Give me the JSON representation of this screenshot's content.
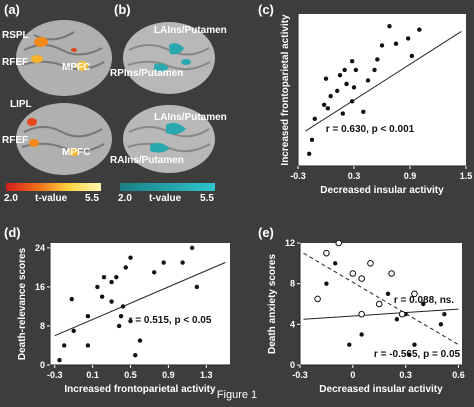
{
  "panel_labels": {
    "a": "(a)",
    "b": "(b)",
    "c": "(c)",
    "d": "(d)",
    "e": "(e)"
  },
  "brain_a": {
    "labels": [
      "RSPL",
      "RFEF",
      "MPFC",
      "LIPL",
      "RFEF",
      "MPFC"
    ],
    "scale": {
      "min": "2.0",
      "label": "t-value",
      "max": "5.5",
      "colors": [
        "#d01e1e",
        "#f06d1a",
        "#ffd640",
        "#fff6b0"
      ]
    }
  },
  "brain_b": {
    "labels": [
      "LAIns/Putamen",
      "RPIns/Putamen",
      "LAIns/Putamen",
      "RAIns/Putamen"
    ],
    "scale": {
      "min": "2.0",
      "label": "t-value",
      "max": "5.5",
      "colors": [
        "#1c7f86",
        "#2ec5cc"
      ]
    }
  },
  "figure_caption": "Figure 1",
  "chart_data": [
    {
      "id": "c",
      "type": "scatter",
      "xlabel": "Decreased insular activity",
      "ylabel": "Increased frontoparietal activity",
      "xlim": [
        -0.3,
        1.5
      ],
      "ylim": [
        -0.25,
        0.62
      ],
      "xticks": [
        "-0.3",
        "0.3",
        "0.9",
        "1.5"
      ],
      "annotation": "r = 0.630, p < 0.001",
      "points": [
        [
          -0.18,
          -0.18
        ],
        [
          -0.15,
          -0.1
        ],
        [
          -0.12,
          0.02
        ],
        [
          -0.02,
          0.1
        ],
        [
          0.02,
          0.08
        ],
        [
          0.0,
          0.25
        ],
        [
          0.05,
          0.15
        ],
        [
          0.12,
          0.18
        ],
        [
          0.15,
          0.27
        ],
        [
          0.18,
          0.05
        ],
        [
          0.2,
          0.3
        ],
        [
          0.22,
          0.22
        ],
        [
          0.28,
          0.12
        ],
        [
          0.28,
          0.35
        ],
        [
          0.3,
          0.2
        ],
        [
          0.32,
          0.3
        ],
        [
          0.4,
          0.06
        ],
        [
          0.45,
          0.24
        ],
        [
          0.52,
          0.3
        ],
        [
          0.55,
          0.36
        ],
        [
          0.6,
          0.44
        ],
        [
          0.68,
          0.55
        ],
        [
          0.75,
          0.45
        ],
        [
          0.88,
          0.48
        ],
        [
          0.92,
          0.38
        ],
        [
          1.0,
          0.53
        ]
      ],
      "fit": [
        [
          -0.22,
          -0.05
        ],
        [
          1.45,
          0.52
        ]
      ]
    },
    {
      "id": "d",
      "type": "scatter",
      "xlabel": "Increased frontoparietal activity",
      "ylabel": "Death-relevance scores",
      "xlim": [
        -0.35,
        1.55
      ],
      "ylim": [
        0,
        25
      ],
      "xticks": [
        "-0.3",
        "0.1",
        "0.5",
        "0.9",
        "1.3"
      ],
      "yticks": [
        "0",
        "8",
        "16",
        "24"
      ],
      "annotation": "r = 0.515, p < 0.05",
      "points": [
        [
          -0.25,
          1
        ],
        [
          -0.2,
          4
        ],
        [
          -0.12,
          13.5
        ],
        [
          -0.1,
          7
        ],
        [
          0.05,
          4
        ],
        [
          0.05,
          10
        ],
        [
          0.15,
          16
        ],
        [
          0.2,
          14
        ],
        [
          0.22,
          18
        ],
        [
          0.3,
          13
        ],
        [
          0.3,
          17
        ],
        [
          0.35,
          18
        ],
        [
          0.38,
          8
        ],
        [
          0.4,
          10
        ],
        [
          0.42,
          12
        ],
        [
          0.45,
          20
        ],
        [
          0.5,
          9
        ],
        [
          0.5,
          22
        ],
        [
          0.55,
          2
        ],
        [
          0.6,
          5
        ],
        [
          0.75,
          19
        ],
        [
          0.85,
          21
        ],
        [
          1.05,
          21
        ],
        [
          1.15,
          24
        ],
        [
          1.2,
          16
        ]
      ],
      "fit": [
        [
          -0.3,
          6
        ],
        [
          1.5,
          21
        ]
      ]
    },
    {
      "id": "e",
      "type": "scatter",
      "xlabel": "Decreased insular activity",
      "ylabel": "Death anxiety scores",
      "xlim": [
        -0.3,
        0.62
      ],
      "ylim": [
        0,
        12
      ],
      "xticks": [
        "-0.3",
        "0",
        "0.3",
        "0.6"
      ],
      "yticks": [
        "0",
        "4",
        "8",
        "12"
      ],
      "annotation_ns": "r = 0.088, ns.",
      "annotation_sig": "r = -0.565, p = 0.05",
      "filled_points": [
        [
          -0.15,
          8
        ],
        [
          -0.1,
          10
        ],
        [
          -0.02,
          2
        ],
        [
          0.05,
          3
        ],
        [
          0.2,
          7
        ],
        [
          0.25,
          4.5
        ],
        [
          0.3,
          5
        ],
        [
          0.32,
          1
        ],
        [
          0.35,
          2
        ],
        [
          0.4,
          6
        ],
        [
          0.5,
          4
        ],
        [
          0.52,
          5
        ]
      ],
      "open_points": [
        [
          -0.2,
          6.5
        ],
        [
          -0.15,
          11
        ],
        [
          -0.08,
          12
        ],
        [
          0.0,
          9
        ],
        [
          0.05,
          8.5
        ],
        [
          0.05,
          5
        ],
        [
          0.1,
          10
        ],
        [
          0.15,
          6
        ],
        [
          0.22,
          9
        ],
        [
          0.28,
          5
        ],
        [
          0.35,
          7
        ]
      ],
      "fit_solid": [
        [
          -0.28,
          4.5
        ],
        [
          0.6,
          5.5
        ]
      ],
      "fit_dashed": [
        [
          -0.28,
          11
        ],
        [
          0.6,
          2
        ]
      ]
    }
  ]
}
